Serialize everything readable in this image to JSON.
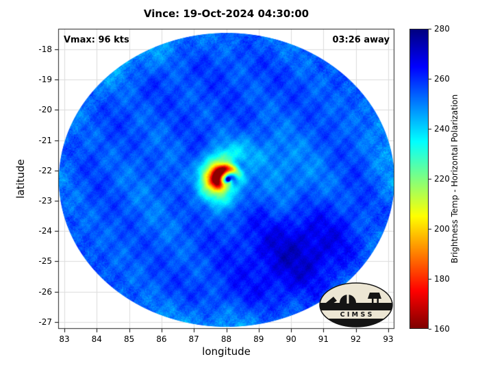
{
  "chart_data": {
    "type": "heatmap",
    "title": "Vince: 19-Oct-2024 04:30:00",
    "xlabel": "longitude",
    "ylabel": "latitude",
    "annotations": {
      "vmax": "Vmax: 96 kts",
      "eta": "03:26 away"
    },
    "x_ticks": [
      83,
      84,
      85,
      86,
      87,
      88,
      89,
      90,
      91,
      92,
      93
    ],
    "y_ticks": [
      -18,
      -19,
      -20,
      -21,
      -22,
      -23,
      -24,
      -25,
      -26,
      -27
    ],
    "xlim": [
      82.8,
      93.2
    ],
    "ylim": [
      -27.25,
      -17.3
    ],
    "grid": true,
    "colorbar": {
      "label": "Brightness Temp - Horizontal Polarization",
      "min": 160,
      "max": 280,
      "ticks": [
        160,
        180,
        200,
        220,
        240,
        260,
        280
      ],
      "colormap": "jet-reversed",
      "stops": [
        {
          "t": 0,
          "c": "#00007f"
        },
        {
          "t": 0.125,
          "c": "#0000ff"
        },
        {
          "t": 0.375,
          "c": "#00ffff"
        },
        {
          "t": 0.625,
          "c": "#ffff00"
        },
        {
          "t": 0.875,
          "c": "#ff0000"
        },
        {
          "t": 1,
          "c": "#7f0000"
        }
      ]
    },
    "storm": {
      "name": "Vince",
      "datetime": "19-Oct-2024 04:30:00",
      "vmax_kts": 96,
      "eye_lon": 88.05,
      "eye_lat": -22.28,
      "swath_center_lon": 88.0,
      "swath_center_lat": -22.3,
      "swath_radius_deg": 5.1,
      "background_temp_k": 257,
      "eye_temp_k": 277,
      "eyewall_min_temp_k": 165,
      "warm_anomaly": {
        "lon": 90.2,
        "lat": -24.3,
        "temp_k": 271
      }
    }
  },
  "logo": {
    "text": "C I M S S"
  }
}
